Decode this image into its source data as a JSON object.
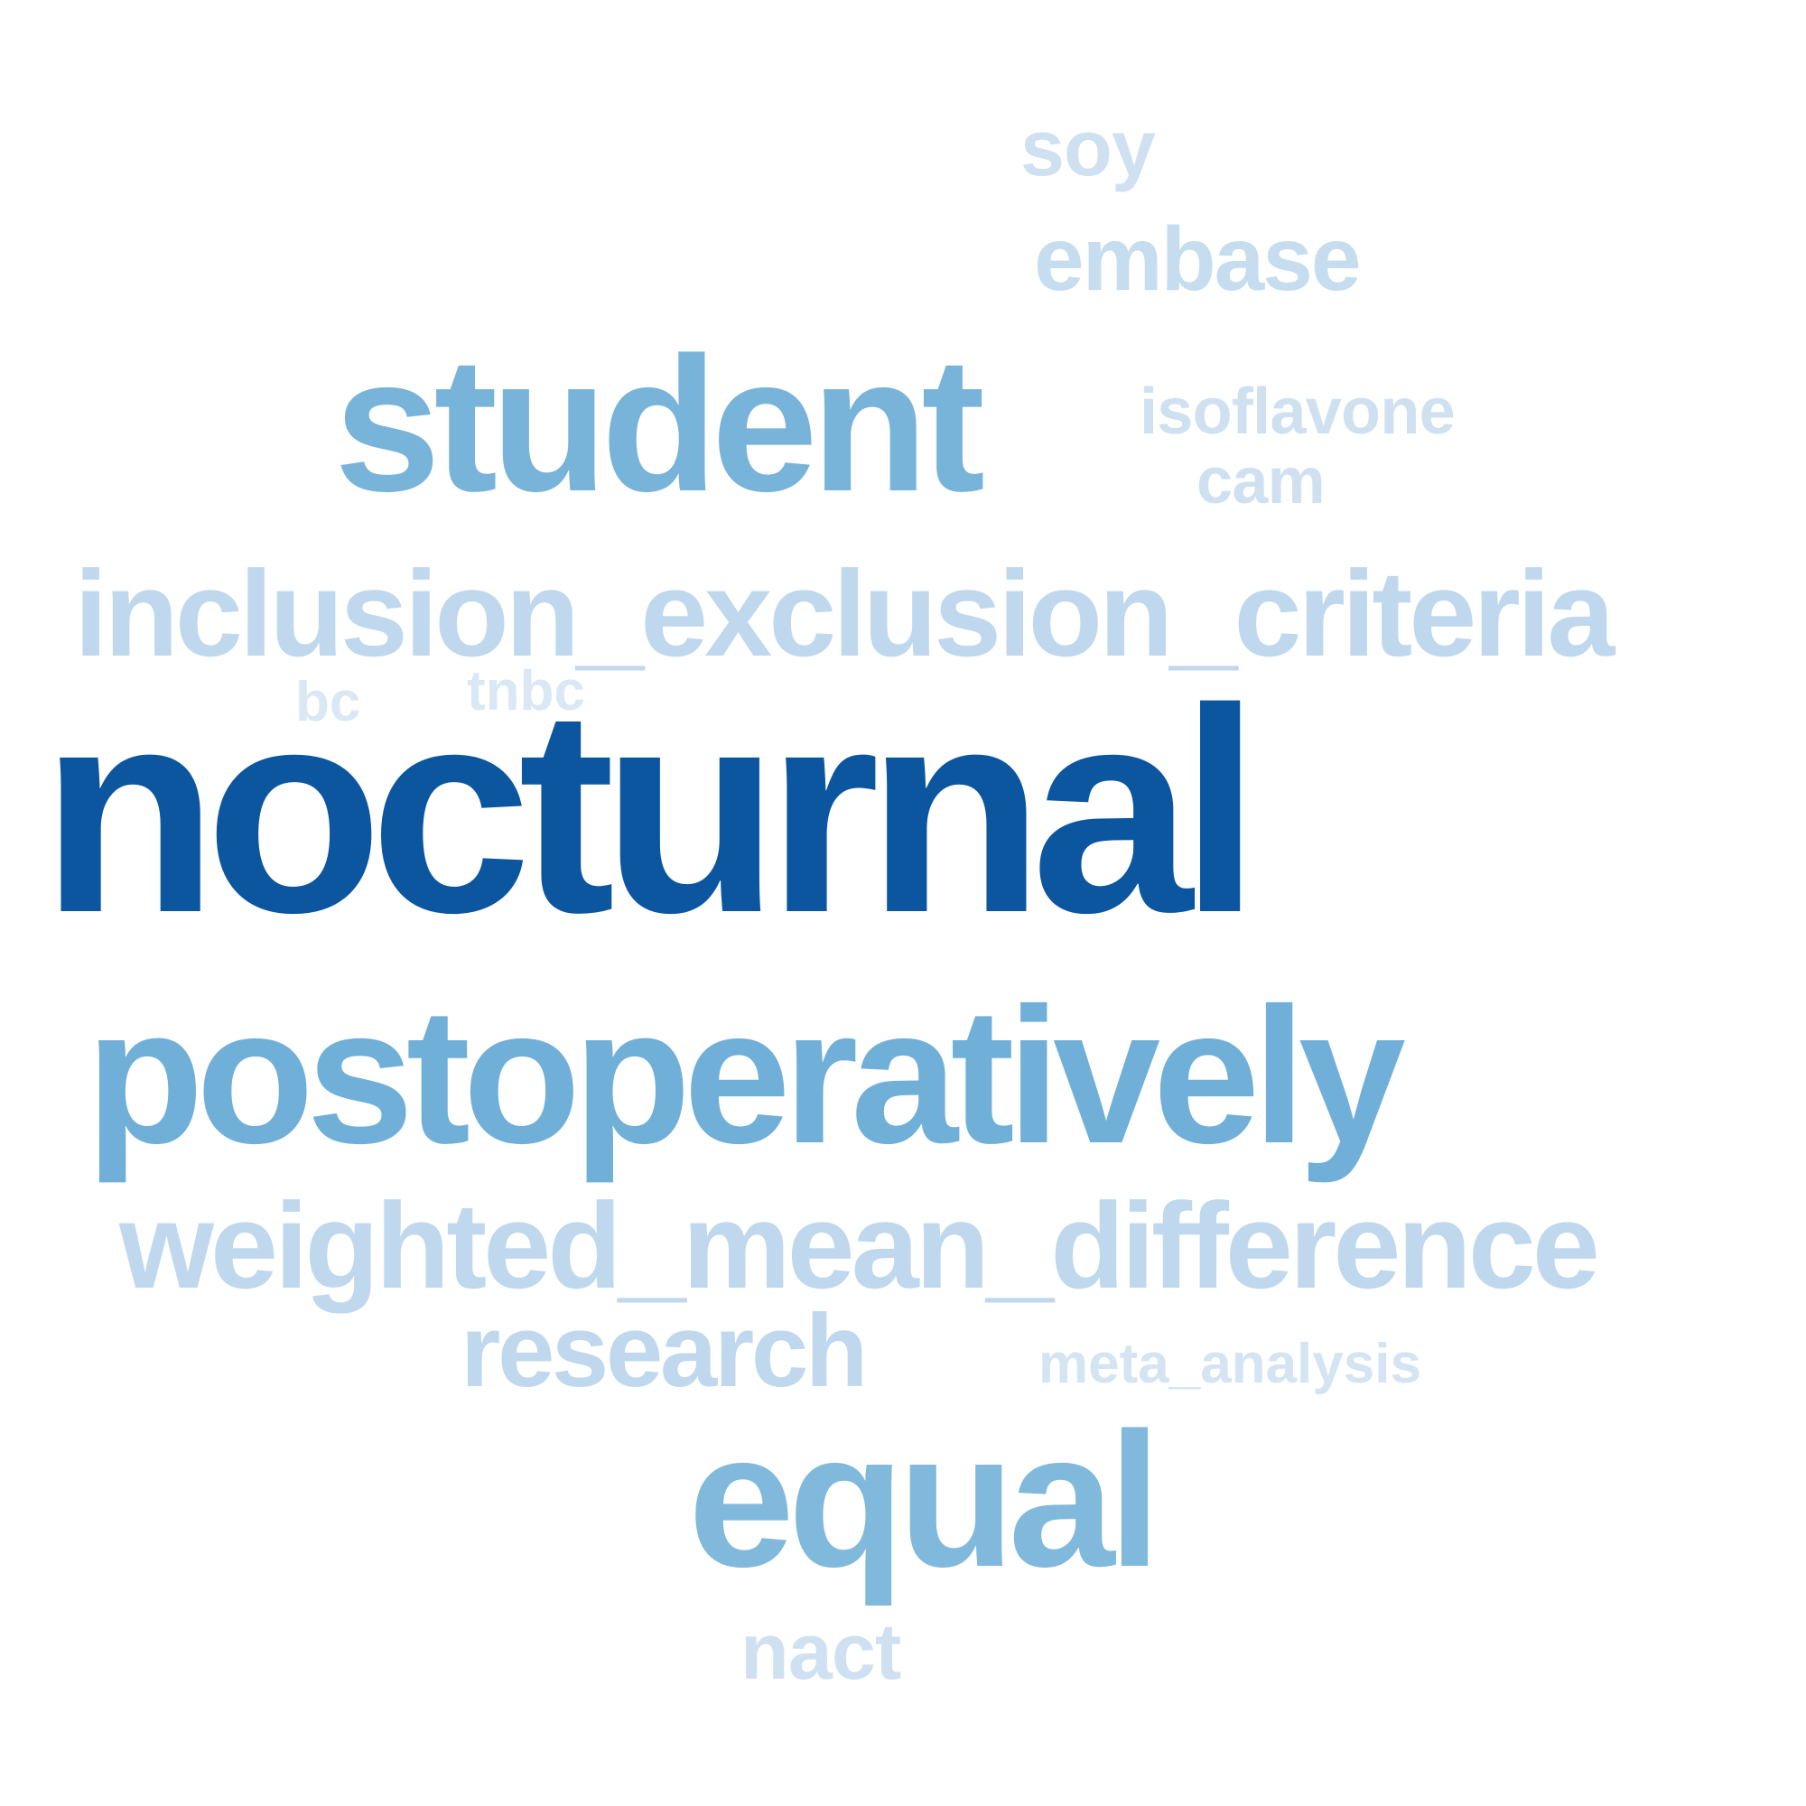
{
  "word_cloud": {
    "words": [
      {
        "id": "nocturnal",
        "text": "nocturnal",
        "color": "#0c56a0"
      },
      {
        "id": "postoperatively",
        "text": "postoperatively",
        "color": "#70b0d8"
      },
      {
        "id": "student",
        "text": "student",
        "color": "#78b4da"
      },
      {
        "id": "equal",
        "text": "equal",
        "color": "#80b9dc"
      },
      {
        "id": "inclusion_exclusion",
        "text": "inclusion_exclusion_criteria",
        "color": "#c0d8ed"
      },
      {
        "id": "weighted_mean",
        "text": "weighted_mean_difference",
        "color": "#c0d8ed"
      },
      {
        "id": "research",
        "text": "research",
        "color": "#c0d8ed"
      },
      {
        "id": "embase",
        "text": "embase",
        "color": "#c6dcef"
      },
      {
        "id": "isoflavone",
        "text": "isoflavone",
        "color": "#cfe1f1"
      },
      {
        "id": "cam",
        "text": "cam",
        "color": "#cfe1f1"
      },
      {
        "id": "soy",
        "text": "soy",
        "color": "#cfe1f1"
      },
      {
        "id": "meta_analysis",
        "text": "meta_analysis",
        "color": "#d4e4f2"
      },
      {
        "id": "nact",
        "text": "nact",
        "color": "#cfe1f1"
      },
      {
        "id": "tnbc",
        "text": "tnbc",
        "color": "#d9e8f4"
      },
      {
        "id": "bc",
        "text": "bc",
        "color": "#d9e8f4"
      }
    ]
  }
}
